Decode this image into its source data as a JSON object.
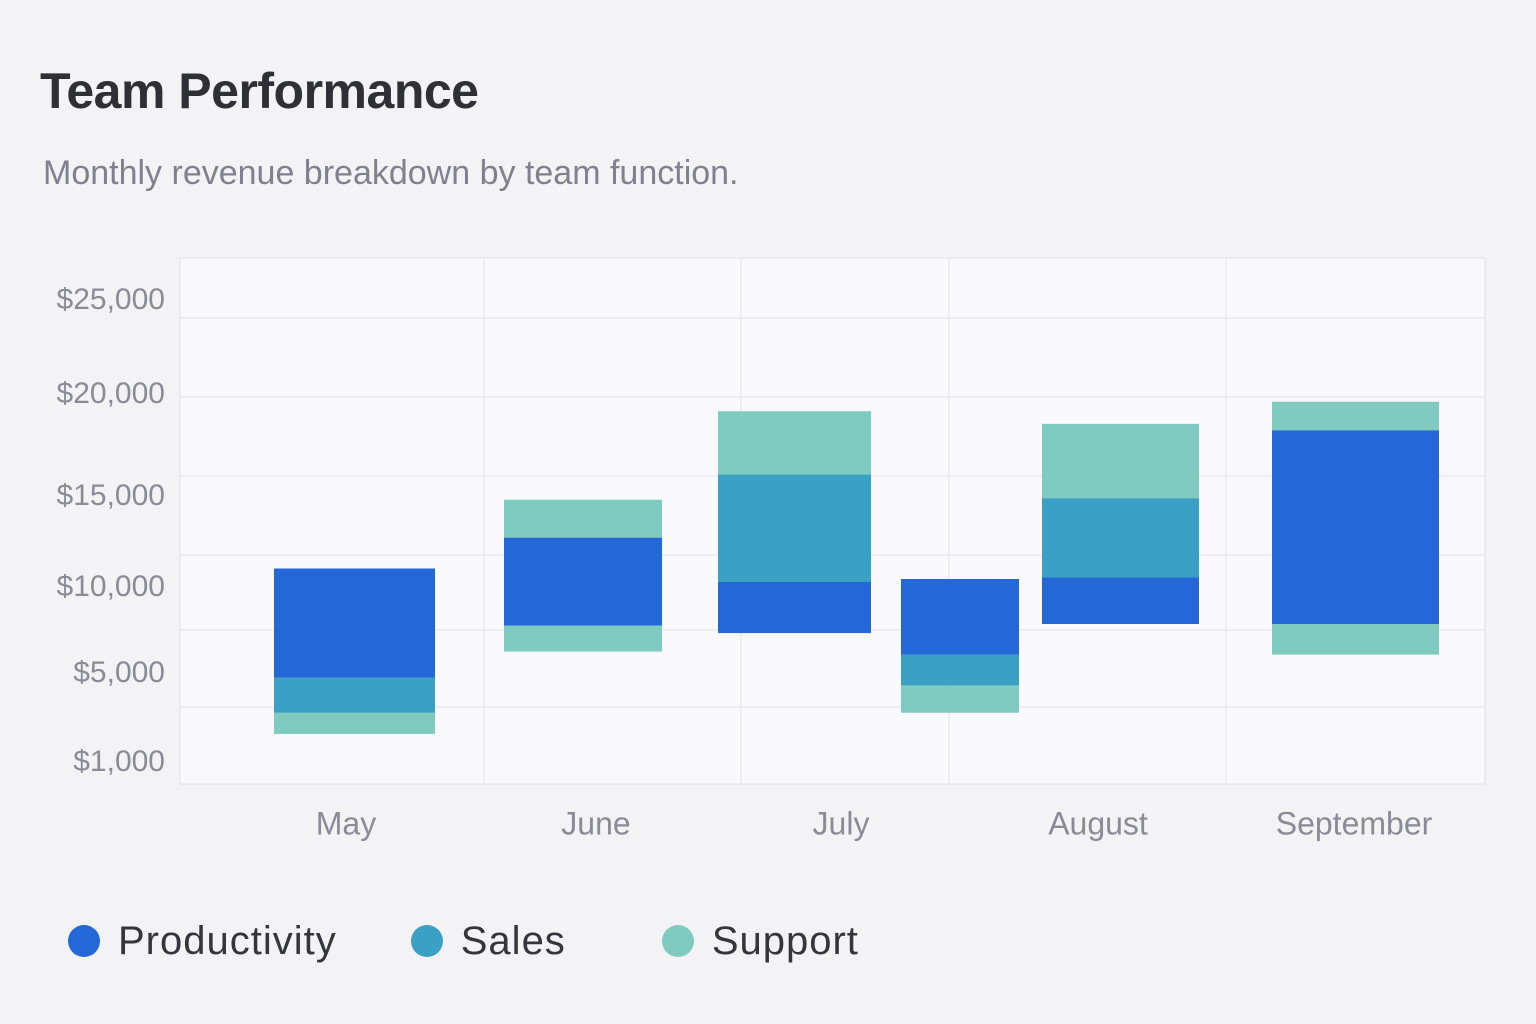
{
  "header": {
    "title": "Team Performance",
    "subtitle": "Monthly revenue breakdown by team function."
  },
  "colors": {
    "productivity": "#2368d6",
    "sales": "#3aa0c4",
    "support": "#80cbc0",
    "grid": "#e3e4ea",
    "plot_background": "#f9f9fb"
  },
  "chart_data": {
    "type": "bar",
    "subtype": "floating-stacked",
    "title": "Team Performance",
    "subtitle": "Monthly revenue breakdown by team function.",
    "xlabel": "",
    "ylabel": "",
    "y_tick_labels": [
      "$1,000",
      "$5,000",
      "$10,000",
      "$15,000",
      "$20,000",
      "$25,000"
    ],
    "y_tick_values": [
      1000,
      5000,
      10000,
      15000,
      20000,
      25000
    ],
    "grid": true,
    "legend_position": "bottom-left",
    "legend": [
      "Productivity",
      "Sales",
      "Support"
    ],
    "bars": [
      {
        "month": "May",
        "segments": [
          {
            "team": "Support",
            "from": 3600,
            "to": 4700
          },
          {
            "team": "Sales",
            "from": 4700,
            "to": 6900
          },
          {
            "team": "Productivity",
            "from": 6900,
            "to": 14100
          }
        ]
      },
      {
        "month": "June",
        "segments": [
          {
            "team": "Support",
            "from": 8600,
            "to": 10300
          },
          {
            "team": "Productivity",
            "from": 10300,
            "to": 16100
          },
          {
            "team": "Support",
            "from": 16100,
            "to": 18500
          }
        ]
      },
      {
        "month": "July",
        "segments": [
          {
            "team": "Productivity",
            "from": 9800,
            "to": 13200
          },
          {
            "team": "Sales",
            "from": 13200,
            "to": 20100
          },
          {
            "team": "Support",
            "from": 20100,
            "to": 24100
          }
        ]
      },
      {
        "month": "",
        "segments": [
          {
            "team": "Support",
            "from": 4700,
            "to": 6400
          },
          {
            "team": "Sales",
            "from": 6400,
            "to": 8400
          },
          {
            "team": "Productivity",
            "from": 8400,
            "to": 13400
          }
        ]
      },
      {
        "month": "August",
        "segments": [
          {
            "team": "Productivity",
            "from": 10400,
            "to": 13500
          },
          {
            "team": "Sales",
            "from": 13500,
            "to": 18600
          },
          {
            "team": "Support",
            "from": 18600,
            "to": 23300
          }
        ]
      },
      {
        "month": "September",
        "segments": [
          {
            "team": "Support",
            "from": 8400,
            "to": 10400
          },
          {
            "team": "Productivity",
            "from": 10400,
            "to": 22900
          },
          {
            "team": "Support",
            "from": 22900,
            "to": 24700
          }
        ]
      }
    ],
    "x_tick_labels": [
      "May",
      "June",
      "July",
      "August",
      "September"
    ]
  },
  "legend_items": [
    {
      "label": "Productivity",
      "color": "#2368d6"
    },
    {
      "label": "Sales",
      "color": "#3aa0c4"
    },
    {
      "label": "Support",
      "color": "#80cbc0"
    }
  ]
}
